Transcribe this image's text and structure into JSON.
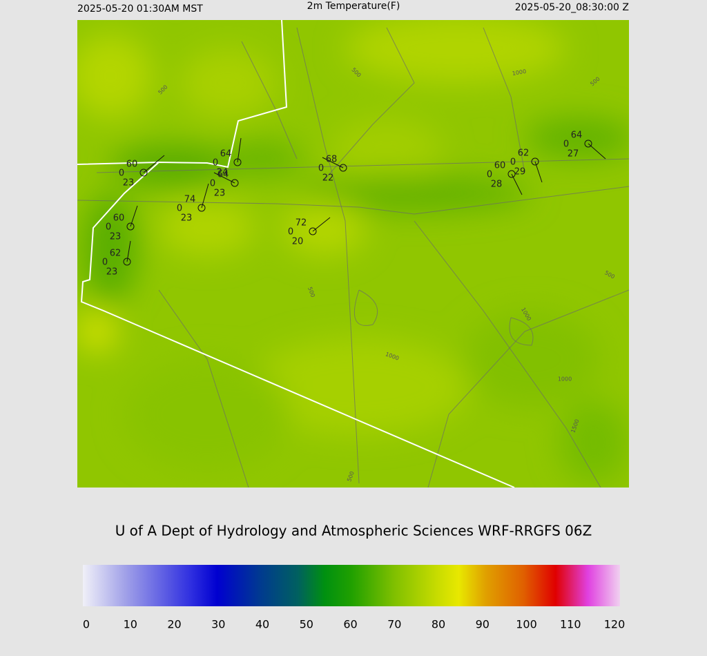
{
  "header": {
    "left": "2025-05-20 01:30AM MST",
    "title": "2m Temperature(F)",
    "right": "2025-05-20_08:30:00 Z"
  },
  "stations": [
    {
      "temperature": 60,
      "value": 0,
      "dewpoint": 23
    },
    {
      "temperature": 64,
      "value": 0,
      "dewpoint": 24
    },
    {
      "temperature": 64,
      "value": 0,
      "dewpoint": 23
    },
    {
      "temperature": 74,
      "value": 0,
      "dewpoint": 23
    },
    {
      "temperature": 60,
      "value": 0,
      "dewpoint": 23
    },
    {
      "temperature": 62,
      "value": 0,
      "dewpoint": 23
    },
    {
      "temperature": 68,
      "value": 0,
      "dewpoint": 22
    },
    {
      "temperature": 72,
      "value": 0,
      "dewpoint": 20
    },
    {
      "temperature": 60,
      "value": 0,
      "dewpoint": 28
    },
    {
      "temperature": 62,
      "value": 0,
      "dewpoint": 29
    },
    {
      "temperature": 64,
      "value": 0,
      "dewpoint": 27
    }
  ],
  "contour_labels": [
    500,
    500,
    1000,
    500,
    500,
    500,
    1000,
    1000,
    1000,
    1500,
    500
  ],
  "footer": {
    "credit": "U of A Dept of Hydrology and Atmospheric Sciences WRF-RRGFS 06Z"
  },
  "colorbar": {
    "range": [
      0,
      120
    ],
    "ticks": [
      0,
      10,
      20,
      30,
      40,
      50,
      60,
      70,
      80,
      90,
      100,
      110,
      120
    ]
  }
}
